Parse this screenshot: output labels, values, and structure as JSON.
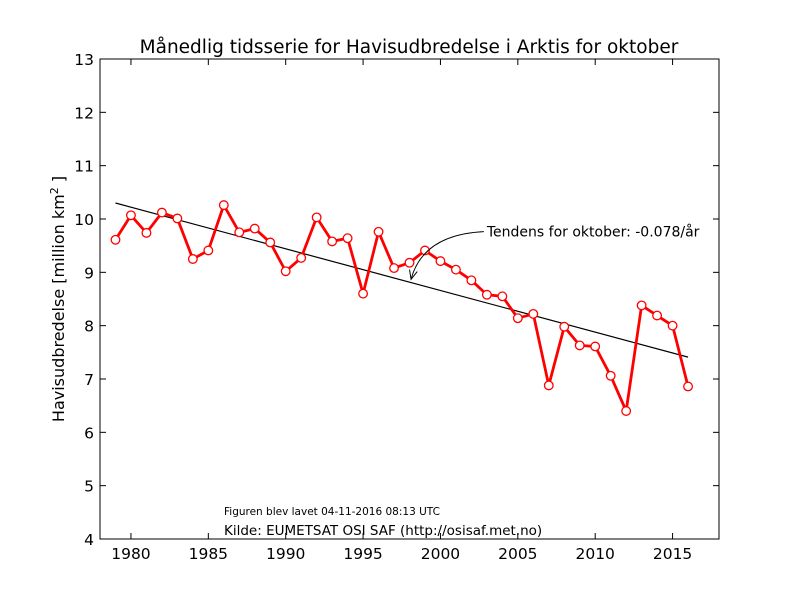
{
  "chart_data": {
    "type": "line",
    "title": "Månedlig tidsserie for Havisudbredelse i Arktis for oktober",
    "ylabel": "Havisudbredelse [million km",
    "ylabel_sup": "2",
    "ylabel_end": " ]",
    "xlabel": "",
    "xlim": [
      1978,
      2018
    ],
    "ylim": [
      4,
      13
    ],
    "xticks": [
      1980,
      1985,
      1990,
      1995,
      2000,
      2005,
      2010,
      2015
    ],
    "yticks": [
      4,
      5,
      6,
      7,
      8,
      9,
      10,
      11,
      12,
      13
    ],
    "grid": false,
    "x": [
      1979,
      1980,
      1981,
      1982,
      1983,
      1984,
      1985,
      1986,
      1987,
      1988,
      1989,
      1990,
      1991,
      1992,
      1993,
      1994,
      1995,
      1996,
      1997,
      1998,
      1999,
      2000,
      2001,
      2002,
      2003,
      2004,
      2005,
      2006,
      2007,
      2008,
      2009,
      2010,
      2011,
      2012,
      2013,
      2014,
      2015,
      2016
    ],
    "series": [
      {
        "values": [
          9.61,
          10.07,
          9.74,
          10.12,
          10.01,
          9.25,
          9.41,
          10.26,
          9.75,
          9.82,
          9.56,
          9.02,
          9.27,
          10.03,
          9.58,
          9.64,
          8.6,
          9.76,
          9.08,
          9.18,
          9.41,
          9.21,
          9.05,
          8.85,
          8.58,
          8.55,
          8.14,
          8.22,
          6.88,
          7.98,
          7.63,
          7.61,
          7.06,
          6.4,
          8.38,
          8.19,
          8.0,
          6.86
        ],
        "color": "#ff0000",
        "marker": "circle"
      }
    ],
    "trend": {
      "x": [
        1979,
        2016
      ],
      "y": [
        10.3,
        7.41
      ],
      "color": "#000000"
    },
    "annotation": {
      "text": "Tendens for oktober: -0.078/år",
      "arrow_to": [
        1998.1,
        8.87
      ],
      "text_at": [
        2003,
        9.67
      ]
    },
    "footer_small": "Figuren blev lavet 04-11-2016 08:13 UTC",
    "footer_source": "Kilde: EUMETSAT OSI SAF (http://osisaf.met.no)"
  }
}
